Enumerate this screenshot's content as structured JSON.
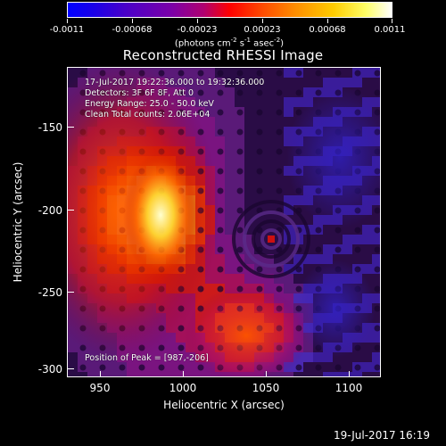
{
  "colorbar": {
    "tick_labels": [
      "-0.0011",
      "-0.00068",
      "-0.00023",
      "0.00023",
      "0.00068",
      "0.0011"
    ],
    "units": {
      "prefix": "(photons cm",
      "exp1": "-2",
      "mid1": " s",
      "exp2": "-1",
      "mid2": " asec",
      "exp3": "-2",
      "suffix": ")"
    }
  },
  "title": "Reconstructed RHESSI Image",
  "annotations": {
    "time_range": "17-Jul-2017 19:22:36.000 to 19:32:36.000",
    "detectors": "Detectors: 3F 6F 8F, Att 0",
    "energy_range": "Energy Range: 25.0 - 50.0 keV",
    "clean_counts": "Clean    Total counts: 2.06E+04",
    "peak_position": "Position of Peak = [987,-206]"
  },
  "axes": {
    "xlabel": "Heliocentric X (arcsec)",
    "ylabel": "Heliocentric Y (arcsec)",
    "x_ticks": [
      "950",
      "1000",
      "1050",
      "1100"
    ],
    "y_ticks": [
      "-150",
      "-200",
      "-250",
      "-300"
    ]
  },
  "footer": {
    "timestamp": "19-Jul-2017 16:19"
  },
  "image": {
    "colormap": "blue-purple-red-yellow-white",
    "peak_color": "#ffffa0"
  }
}
